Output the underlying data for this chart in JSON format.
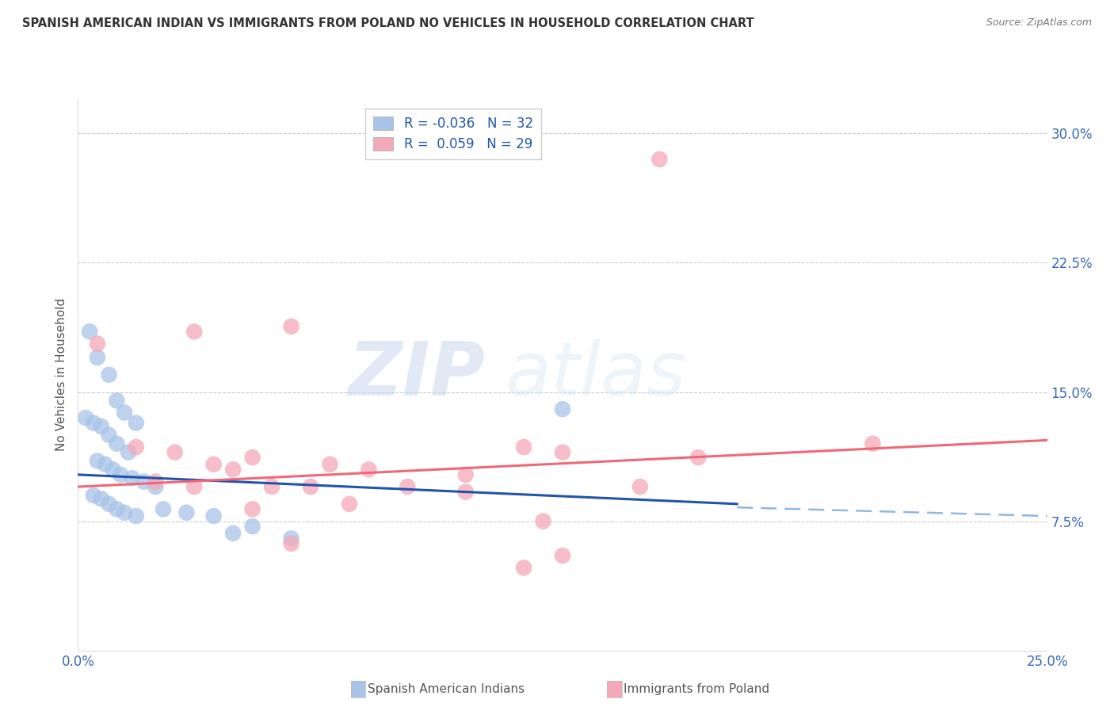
{
  "title": "SPANISH AMERICAN INDIAN VS IMMIGRANTS FROM POLAND NO VEHICLES IN HOUSEHOLD CORRELATION CHART",
  "source": "Source: ZipAtlas.com",
  "ylabel": "No Vehicles in Household",
  "xlim": [
    0.0,
    25.0
  ],
  "ylim": [
    0.0,
    32.0
  ],
  "yticks": [
    0.0,
    7.5,
    15.0,
    22.5,
    30.0
  ],
  "xticks": [
    0.0,
    5.0,
    10.0,
    15.0,
    20.0,
    25.0
  ],
  "legend_r_blue": "-0.036",
  "legend_n_blue": "32",
  "legend_r_pink": "0.059",
  "legend_n_pink": "29",
  "blue_color": "#a8c4e8",
  "pink_color": "#f5a8b8",
  "line_blue_color": "#2255aa",
  "line_pink_color": "#f06878",
  "dashed_line_color": "#90b8e0",
  "watermark_zip": "ZIP",
  "watermark_atlas": "atlas",
  "blue_scatter": [
    [
      0.3,
      18.5
    ],
    [
      0.5,
      17.0
    ],
    [
      0.8,
      16.0
    ],
    [
      1.0,
      14.5
    ],
    [
      0.2,
      13.5
    ],
    [
      0.4,
      13.2
    ],
    [
      0.6,
      13.0
    ],
    [
      0.8,
      12.5
    ],
    [
      1.2,
      13.8
    ],
    [
      1.0,
      12.0
    ],
    [
      1.5,
      13.2
    ],
    [
      1.3,
      11.5
    ],
    [
      0.5,
      11.0
    ],
    [
      0.7,
      10.8
    ],
    [
      0.9,
      10.5
    ],
    [
      1.1,
      10.2
    ],
    [
      1.4,
      10.0
    ],
    [
      1.7,
      9.8
    ],
    [
      2.0,
      9.5
    ],
    [
      0.4,
      9.0
    ],
    [
      0.6,
      8.8
    ],
    [
      0.8,
      8.5
    ],
    [
      1.0,
      8.2
    ],
    [
      1.2,
      8.0
    ],
    [
      1.5,
      7.8
    ],
    [
      2.2,
      8.2
    ],
    [
      2.8,
      8.0
    ],
    [
      3.5,
      7.8
    ],
    [
      4.5,
      7.2
    ],
    [
      4.0,
      6.8
    ],
    [
      5.5,
      6.5
    ],
    [
      12.5,
      14.0
    ]
  ],
  "pink_scatter": [
    [
      0.5,
      17.8
    ],
    [
      3.0,
      18.5
    ],
    [
      1.5,
      11.8
    ],
    [
      2.5,
      11.5
    ],
    [
      4.5,
      11.2
    ],
    [
      5.5,
      18.8
    ],
    [
      3.5,
      10.8
    ],
    [
      4.0,
      10.5
    ],
    [
      6.5,
      10.8
    ],
    [
      7.5,
      10.5
    ],
    [
      10.0,
      10.2
    ],
    [
      11.5,
      11.8
    ],
    [
      12.5,
      11.5
    ],
    [
      16.0,
      11.2
    ],
    [
      20.5,
      12.0
    ],
    [
      2.0,
      9.8
    ],
    [
      3.0,
      9.5
    ],
    [
      5.0,
      9.5
    ],
    [
      6.0,
      9.5
    ],
    [
      8.5,
      9.5
    ],
    [
      10.0,
      9.2
    ],
    [
      14.5,
      9.5
    ],
    [
      4.5,
      8.2
    ],
    [
      7.0,
      8.5
    ],
    [
      12.0,
      7.5
    ],
    [
      5.5,
      6.2
    ],
    [
      12.5,
      5.5
    ],
    [
      11.5,
      4.8
    ],
    [
      15.0,
      28.5
    ]
  ],
  "blue_line": [
    [
      0.0,
      10.2
    ],
    [
      17.0,
      8.5
    ]
  ],
  "blue_dashed_line": [
    [
      17.0,
      8.3
    ],
    [
      25.0,
      7.8
    ]
  ],
  "pink_line": [
    [
      0.0,
      9.5
    ],
    [
      25.0,
      12.2
    ]
  ]
}
